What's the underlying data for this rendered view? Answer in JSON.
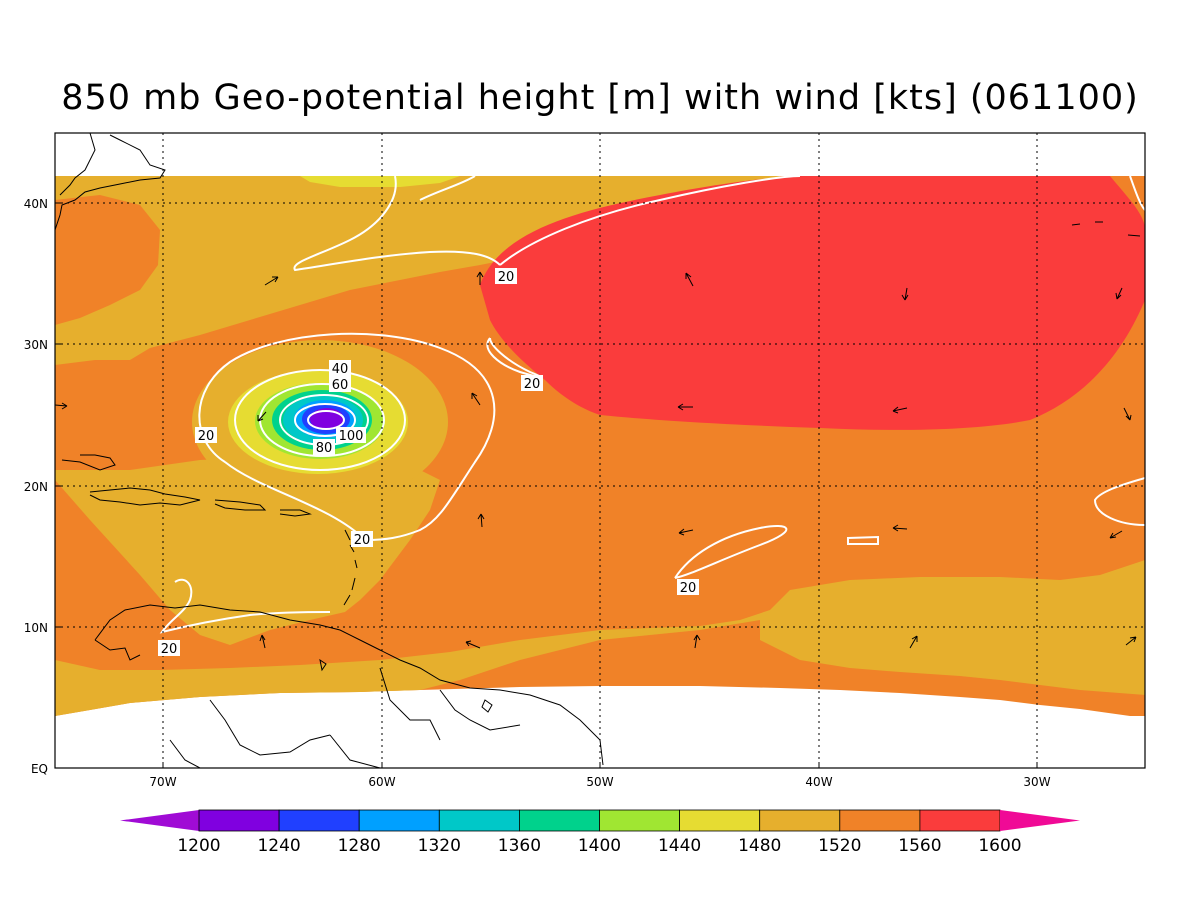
{
  "title": "850 mb Geo-potential height [m] with wind [kts] (061100)",
  "lat_labels": [
    "40N",
    "30N",
    "20N",
    "10N",
    "EQ"
  ],
  "lon_labels": [
    "70W",
    "60W",
    "50W",
    "40W",
    "30W"
  ],
  "contour_labels": [
    "20",
    "20",
    "20",
    "20",
    "20",
    "20",
    "40",
    "60",
    "80",
    "100"
  ],
  "colorbar": {
    "ticks": [
      "1200",
      "1240",
      "1280",
      "1320",
      "1360",
      "1400",
      "1440",
      "1480",
      "1520",
      "1560",
      "1600"
    ],
    "colors": [
      "#a00bd5",
      "#8000e0",
      "#2040ff",
      "#00a0ff",
      "#00c8c8",
      "#00d28c",
      "#a0e632",
      "#e6dc32",
      "#e6af2d",
      "#f08228",
      "#fa3c3c",
      "#f00a96"
    ]
  },
  "chart_data": {
    "type": "heatmap",
    "variable": "850 mb geopotential height (m), filled contours; wind speed (kts), line contours",
    "x_range": [
      "75W",
      "25W"
    ],
    "y_range": [
      "0",
      "45N"
    ],
    "contour_levels_m": [
      1200,
      1240,
      1280,
      1320,
      1360,
      1400,
      1440,
      1480,
      1520,
      1560,
      1600
    ],
    "wind_contour_levels_kts": [
      20,
      40,
      60,
      80,
      100
    ],
    "features": [
      {
        "label": "low centre (geopotential minimum, wind maximum)",
        "lon": -62.5,
        "lat": 24.5,
        "min_height_m_range": [
          1200,
          1240
        ],
        "max_wind_kts": 100
      },
      {
        "label": "high (>1560 m)",
        "lon_range": [
          -55,
          -25
        ],
        "lat_range": [
          24,
          42
        ]
      }
    ]
  }
}
